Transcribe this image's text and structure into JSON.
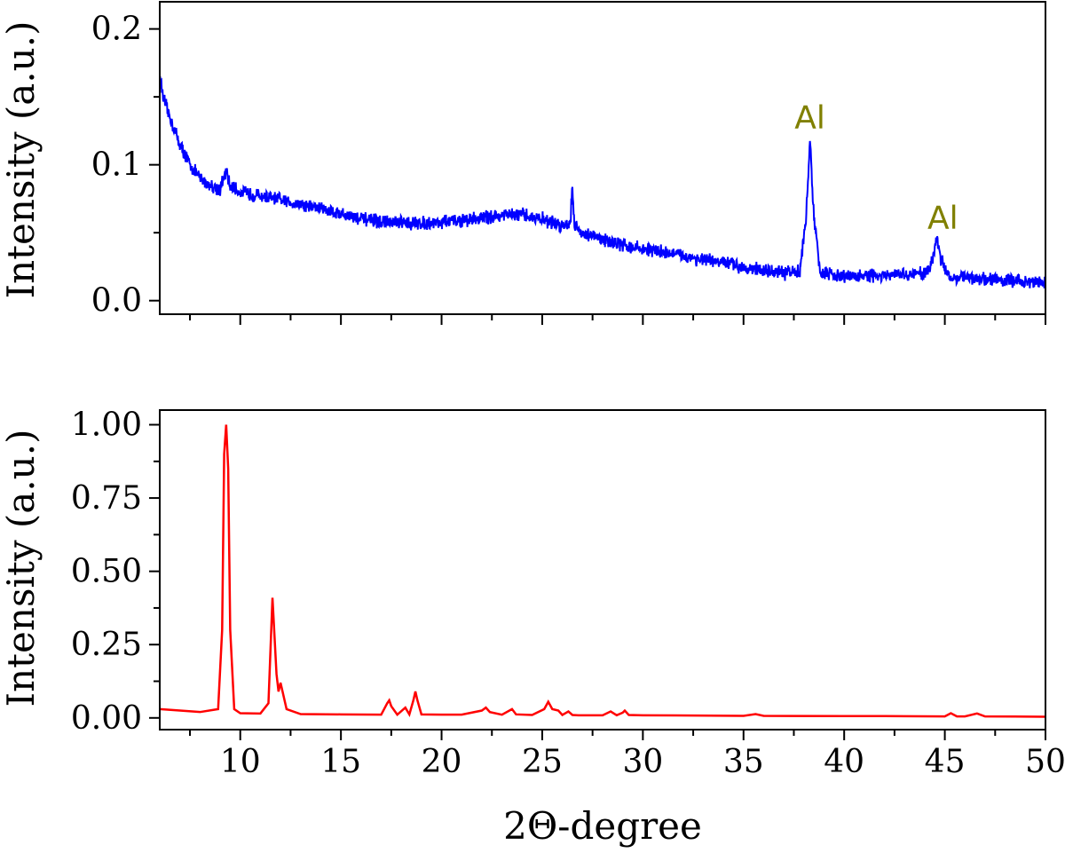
{
  "chart_data": [
    {
      "type": "line",
      "panel": "top",
      "ylabel": "Intensity (a.u.)",
      "xlim": [
        6,
        50
      ],
      "ylim": [
        -0.01,
        0.22
      ],
      "yticks": [
        {
          "v": 0.0,
          "label": "0.0"
        },
        {
          "v": 0.1,
          "label": "0.1"
        },
        {
          "v": 0.2,
          "label": "0.2"
        }
      ],
      "x_tick_labels_shown": false,
      "series_color": "#0000ff",
      "noise_amplitude": 0.004,
      "series": [
        {
          "x": [
            6.0,
            6.2,
            6.5,
            7.0,
            7.5,
            8.0,
            8.5,
            9.0,
            9.3,
            9.5,
            10.0,
            11.0,
            12.0,
            13.0,
            14.0,
            15.0,
            16.0,
            17.0,
            18.0,
            19.0,
            20.0,
            21.0,
            22.0,
            23.0,
            24.0,
            25.0,
            26.0,
            26.4,
            26.5,
            26.6,
            27.0,
            28.0,
            29.0,
            30.0,
            31.0,
            32.0,
            33.0,
            34.0,
            35.0,
            36.0,
            37.0,
            37.8,
            38.1,
            38.3,
            38.5,
            38.8,
            39.5,
            40.0,
            41.0,
            42.0,
            43.0,
            44.0,
            44.4,
            44.6,
            44.8,
            45.2,
            46.0,
            47.0,
            48.0,
            49.0,
            50.0
          ],
          "y": [
            0.165,
            0.148,
            0.135,
            0.115,
            0.1,
            0.09,
            0.085,
            0.082,
            0.095,
            0.084,
            0.08,
            0.077,
            0.074,
            0.071,
            0.068,
            0.064,
            0.06,
            0.058,
            0.057,
            0.057,
            0.058,
            0.059,
            0.061,
            0.063,
            0.063,
            0.06,
            0.055,
            0.058,
            0.085,
            0.055,
            0.05,
            0.045,
            0.041,
            0.038,
            0.036,
            0.033,
            0.03,
            0.028,
            0.025,
            0.022,
            0.02,
            0.022,
            0.06,
            0.118,
            0.06,
            0.022,
            0.018,
            0.018,
            0.018,
            0.018,
            0.019,
            0.02,
            0.03,
            0.048,
            0.03,
            0.018,
            0.017,
            0.016,
            0.015,
            0.014,
            0.013
          ]
        }
      ],
      "annotations": [
        {
          "text": "Al",
          "x": 38.3,
          "y": 0.127,
          "color": "#808000"
        },
        {
          "text": "Al",
          "x": 44.9,
          "y": 0.053,
          "color": "#808000"
        }
      ]
    },
    {
      "type": "line",
      "panel": "bottom",
      "ylabel": "Intensity (a.u.)",
      "xlabel": "2Θ-degree",
      "xlim": [
        6,
        50
      ],
      "ylim": [
        -0.04,
        1.05
      ],
      "yticks": [
        {
          "v": 0.0,
          "label": "0.00"
        },
        {
          "v": 0.25,
          "label": "0.25"
        },
        {
          "v": 0.5,
          "label": "0.50"
        },
        {
          "v": 0.75,
          "label": "0.75"
        },
        {
          "v": 1.0,
          "label": "1.00"
        }
      ],
      "xticks": [
        {
          "v": 10,
          "label": "10"
        },
        {
          "v": 15,
          "label": "15"
        },
        {
          "v": 20,
          "label": "20"
        },
        {
          "v": 25,
          "label": "25"
        },
        {
          "v": 30,
          "label": "30"
        },
        {
          "v": 35,
          "label": "35"
        },
        {
          "v": 40,
          "label": "40"
        },
        {
          "v": 45,
          "label": "45"
        },
        {
          "v": 50,
          "label": "50"
        }
      ],
      "series_color": "#ff0000",
      "series": [
        {
          "x": [
            6.0,
            7.0,
            8.0,
            8.9,
            9.1,
            9.2,
            9.3,
            9.4,
            9.5,
            9.7,
            10.0,
            11.0,
            11.4,
            11.6,
            11.8,
            11.9,
            12.0,
            12.1,
            12.3,
            13.0,
            15.0,
            17.0,
            17.3,
            17.4,
            17.5,
            17.8,
            18.2,
            18.4,
            18.6,
            18.7,
            18.8,
            19.0,
            20.0,
            21.0,
            22.0,
            22.2,
            22.4,
            23.0,
            23.5,
            23.7,
            24.5,
            25.1,
            25.3,
            25.5,
            25.8,
            26.0,
            26.3,
            26.5,
            26.8,
            28.0,
            28.4,
            28.7,
            29.0,
            29.1,
            29.3,
            30.0,
            35.0,
            35.6,
            36.0,
            40.0,
            42.0,
            45.0,
            45.3,
            45.6,
            46.0,
            46.6,
            47.0,
            50.0
          ],
          "y": [
            0.03,
            0.025,
            0.02,
            0.03,
            0.3,
            0.9,
            1.0,
            0.85,
            0.3,
            0.03,
            0.016,
            0.015,
            0.05,
            0.41,
            0.15,
            0.09,
            0.12,
            0.09,
            0.03,
            0.013,
            0.012,
            0.011,
            0.05,
            0.06,
            0.04,
            0.011,
            0.035,
            0.012,
            0.06,
            0.09,
            0.06,
            0.012,
            0.011,
            0.011,
            0.025,
            0.035,
            0.02,
            0.011,
            0.03,
            0.012,
            0.01,
            0.03,
            0.055,
            0.03,
            0.025,
            0.01,
            0.022,
            0.01,
            0.009,
            0.009,
            0.022,
            0.009,
            0.018,
            0.025,
            0.01,
            0.009,
            0.007,
            0.013,
            0.007,
            0.006,
            0.006,
            0.005,
            0.016,
            0.005,
            0.005,
            0.015,
            0.005,
            0.004
          ]
        }
      ]
    }
  ]
}
